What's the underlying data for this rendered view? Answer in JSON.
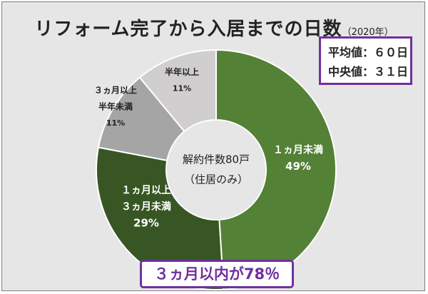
{
  "title": {
    "main": "リフォーム完了から入居までの日数",
    "year": "（2020年）"
  },
  "stats_box": {
    "mean": "平均値：６０日",
    "median": "中央値：３１日"
  },
  "center_label": {
    "line1": "解約件数80戸",
    "line2": "（住居のみ）"
  },
  "summary": "３ヵ月以内が78％",
  "colors": {
    "purple": "#7030a0",
    "s1": "#538135",
    "s2": "#375623",
    "s3": "#a5a5a5",
    "s4": "#d0cece"
  },
  "chart_data": {
    "type": "pie",
    "variant": "donut",
    "slices": [
      {
        "label_lines": [
          "１ヵ月未満"
        ],
        "value": 49,
        "pct": "49%",
        "color": "#538135",
        "text_color": "#ffffff"
      },
      {
        "label_lines": [
          "１ヵ月以上",
          "３ヵ月未満"
        ],
        "value": 29,
        "pct": "29%",
        "color": "#375623",
        "text_color": "#ffffff"
      },
      {
        "label_lines": [
          "３ヵ月以上",
          "半年未満"
        ],
        "value": 11,
        "pct": "11%",
        "color": "#a5a5a5",
        "text_color": "#222222"
      },
      {
        "label_lines": [
          "半年以上"
        ],
        "value": 11,
        "pct": "11%",
        "color": "#d0cece",
        "text_color": "#222222"
      }
    ]
  }
}
